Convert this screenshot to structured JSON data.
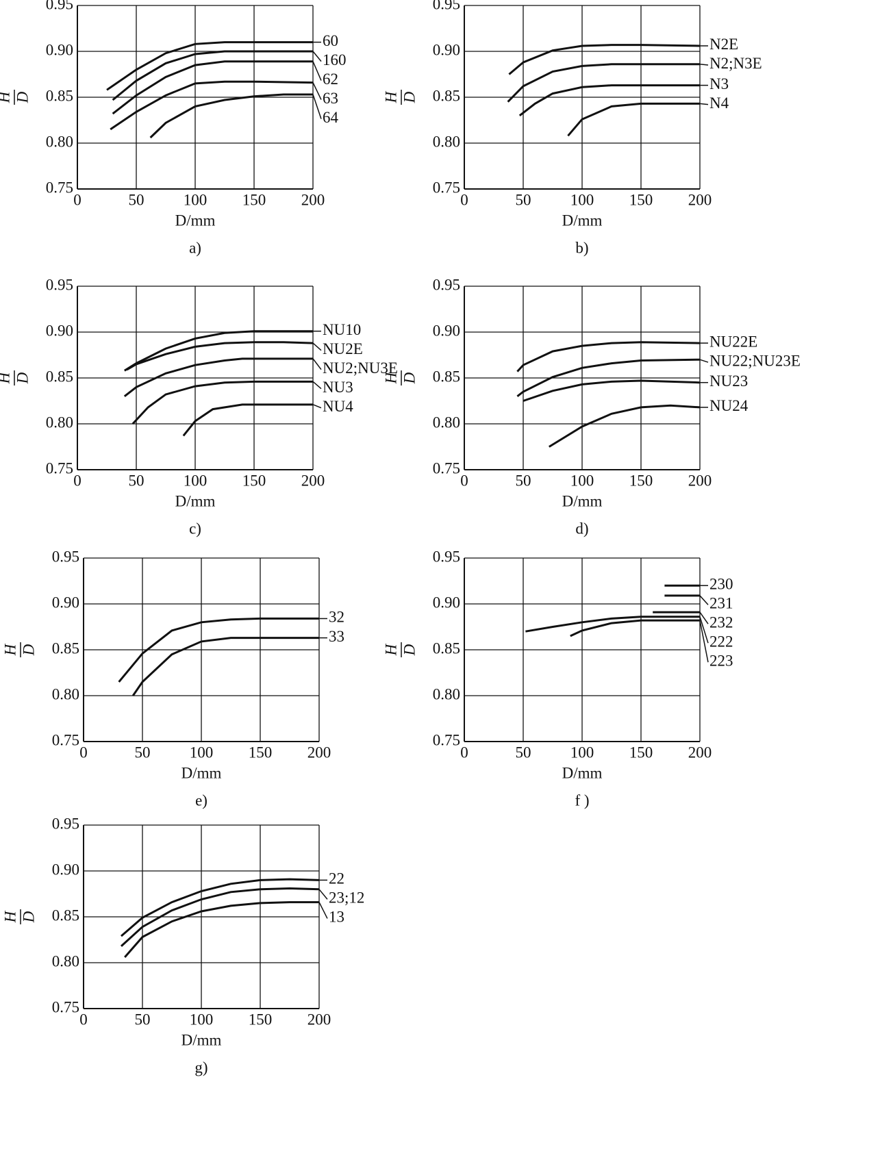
{
  "chart_data": [
    {
      "type": "line",
      "caption": "a)",
      "xlabel": "D/mm",
      "ylabel": {
        "numerator": "H",
        "denominator": "D"
      },
      "xlim": [
        0,
        200
      ],
      "ylim": [
        0.75,
        0.95
      ],
      "xticks": [
        0,
        50,
        100,
        150,
        200
      ],
      "yticks": [
        0.75,
        {
          "value": 0.8,
          "label": "0.80"
        },
        0.85,
        {
          "value": 0.9,
          "label": "0.90"
        },
        0.95
      ],
      "grid": true,
      "color": "#111111",
      "series": [
        {
          "name": "60",
          "x": [
            25,
            50,
            75,
            100,
            125,
            150,
            200
          ],
          "values": [
            0.858,
            0.88,
            0.898,
            0.908,
            0.91,
            0.91,
            0.91
          ]
        },
        {
          "name": "160",
          "x": [
            30,
            50,
            75,
            100,
            125,
            150,
            200
          ],
          "values": [
            0.847,
            0.868,
            0.887,
            0.897,
            0.9,
            0.9,
            0.9
          ]
        },
        {
          "name": "62",
          "x": [
            30,
            50,
            75,
            100,
            125,
            150,
            200
          ],
          "values": [
            0.832,
            0.852,
            0.872,
            0.885,
            0.889,
            0.889,
            0.889
          ]
        },
        {
          "name": "63",
          "x": [
            28,
            50,
            75,
            100,
            125,
            150,
            200
          ],
          "values": [
            0.815,
            0.834,
            0.852,
            0.865,
            0.867,
            0.867,
            0.866
          ]
        },
        {
          "name": "64",
          "x": [
            62,
            75,
            100,
            125,
            150,
            175,
            200
          ],
          "values": [
            0.806,
            0.822,
            0.84,
            0.847,
            0.851,
            0.853,
            0.853
          ]
        }
      ]
    },
    {
      "type": "line",
      "caption": "b)",
      "xlabel": "D/mm",
      "ylabel": {
        "numerator": "H",
        "denominator": "D"
      },
      "xlim": [
        0,
        200
      ],
      "ylim": [
        0.75,
        0.95
      ],
      "xticks": [
        0,
        50,
        100,
        150,
        200
      ],
      "yticks": [
        0.75,
        {
          "value": 0.8,
          "label": "0.80"
        },
        0.85,
        {
          "value": 0.9,
          "label": "0.90"
        },
        0.95
      ],
      "grid": true,
      "color": "#111111",
      "series": [
        {
          "name": "N2E",
          "x": [
            38,
            50,
            75,
            100,
            125,
            150,
            200
          ],
          "values": [
            0.875,
            0.888,
            0.901,
            0.906,
            0.907,
            0.907,
            0.906
          ]
        },
        {
          "name": "N2;N3E",
          "x": [
            37,
            50,
            75,
            100,
            125,
            150,
            200
          ],
          "values": [
            0.845,
            0.862,
            0.878,
            0.884,
            0.886,
            0.886,
            0.886
          ]
        },
        {
          "name": "N3",
          "x": [
            47,
            60,
            75,
            100,
            125,
            150,
            200
          ],
          "values": [
            0.83,
            0.843,
            0.854,
            0.861,
            0.863,
            0.863,
            0.863
          ]
        },
        {
          "name": "N4",
          "x": [
            88,
            100,
            125,
            150,
            200
          ],
          "values": [
            0.808,
            0.826,
            0.84,
            0.843,
            0.843
          ]
        }
      ]
    },
    {
      "type": "line",
      "caption": "c)",
      "xlabel": "D/mm",
      "ylabel": {
        "numerator": "H",
        "denominator": "D"
      },
      "xlim": [
        0,
        200
      ],
      "ylim": [
        0.75,
        0.95
      ],
      "xticks": [
        0,
        50,
        100,
        150,
        200
      ],
      "yticks": [
        0.75,
        {
          "value": 0.8,
          "label": "0.80"
        },
        0.85,
        {
          "value": 0.9,
          "label": "0.90"
        },
        0.95
      ],
      "grid": true,
      "color": "#111111",
      "series": [
        {
          "name": "NU10",
          "x": [
            40,
            50,
            75,
            100,
            125,
            150,
            200
          ],
          "values": [
            0.858,
            0.866,
            0.882,
            0.893,
            0.899,
            0.901,
            0.901
          ]
        },
        {
          "name": "NU2E",
          "x": [
            42,
            50,
            75,
            100,
            125,
            150,
            175,
            200
          ],
          "values": [
            0.859,
            0.865,
            0.876,
            0.884,
            0.888,
            0.889,
            0.889,
            0.888
          ]
        },
        {
          "name": "NU2;NU3E",
          "x": [
            40,
            50,
            75,
            100,
            125,
            140,
            200
          ],
          "values": [
            0.83,
            0.84,
            0.855,
            0.864,
            0.869,
            0.871,
            0.871
          ]
        },
        {
          "name": "NU3",
          "x": [
            47,
            60,
            75,
            100,
            125,
            150,
            200
          ],
          "values": [
            0.8,
            0.818,
            0.832,
            0.841,
            0.845,
            0.846,
            0.846
          ]
        },
        {
          "name": "NU4",
          "x": [
            90,
            100,
            115,
            140,
            200
          ],
          "values": [
            0.787,
            0.803,
            0.816,
            0.821,
            0.821
          ]
        }
      ]
    },
    {
      "type": "line",
      "caption": "d)",
      "xlabel": "D/mm",
      "ylabel": {
        "numerator": "H",
        "denominator": "D"
      },
      "xlim": [
        0,
        200
      ],
      "ylim": [
        0.75,
        0.95
      ],
      "xticks": [
        0,
        50,
        100,
        150,
        200
      ],
      "yticks": [
        0.75,
        {
          "value": 0.8,
          "label": "0.80"
        },
        0.85,
        {
          "value": 0.9,
          "label": "0.90"
        },
        0.95
      ],
      "grid": true,
      "color": "#111111",
      "series": [
        {
          "name": "NU22E",
          "x": [
            45,
            50,
            75,
            100,
            125,
            150,
            200
          ],
          "values": [
            0.857,
            0.864,
            0.879,
            0.885,
            0.888,
            0.889,
            0.888
          ]
        },
        {
          "name": "NU22;NU23E",
          "x": [
            45,
            50,
            75,
            100,
            125,
            150,
            200
          ],
          "values": [
            0.83,
            0.835,
            0.851,
            0.861,
            0.866,
            0.869,
            0.87
          ]
        },
        {
          "name": "NU23",
          "x": [
            50,
            75,
            100,
            125,
            150,
            200
          ],
          "values": [
            0.825,
            0.836,
            0.843,
            0.846,
            0.847,
            0.845
          ]
        },
        {
          "name": "NU24",
          "x": [
            72,
            100,
            125,
            150,
            175,
            200
          ],
          "values": [
            0.775,
            0.797,
            0.811,
            0.818,
            0.82,
            0.818
          ]
        }
      ]
    },
    {
      "type": "line",
      "caption": "e)",
      "xlabel": "D/mm",
      "ylabel": {
        "numerator": "H",
        "denominator": "D"
      },
      "xlim": [
        0,
        200
      ],
      "ylim": [
        0.75,
        0.95
      ],
      "xticks": [
        0,
        50,
        100,
        150,
        200
      ],
      "yticks": [
        0.75,
        {
          "value": 0.8,
          "label": "0.80"
        },
        0.85,
        {
          "value": 0.9,
          "label": "0.90"
        },
        0.95
      ],
      "grid": true,
      "color": "#111111",
      "series": [
        {
          "name": "32",
          "x": [
            30,
            50,
            75,
            100,
            125,
            150,
            200
          ],
          "values": [
            0.815,
            0.846,
            0.871,
            0.88,
            0.883,
            0.884,
            0.884
          ]
        },
        {
          "name": "33",
          "x": [
            42,
            50,
            75,
            100,
            125,
            150,
            200
          ],
          "values": [
            0.8,
            0.815,
            0.845,
            0.859,
            0.863,
            0.863,
            0.863
          ]
        }
      ]
    },
    {
      "type": "line",
      "caption": "f )",
      "xlabel": "D/mm",
      "ylabel": {
        "numerator": "H",
        "denominator": "D"
      },
      "xlim": [
        0,
        200
      ],
      "ylim": [
        0.75,
        0.95
      ],
      "xticks": [
        0,
        50,
        100,
        150,
        200
      ],
      "yticks": [
        0.75,
        {
          "value": 0.8,
          "label": "0.80"
        },
        0.85,
        {
          "value": 0.9,
          "label": "0.90"
        },
        0.95
      ],
      "grid": true,
      "color": "#111111",
      "series": [
        {
          "name": "230",
          "x": [
            170,
            200
          ],
          "values": [
            0.92,
            0.92
          ]
        },
        {
          "name": "231",
          "x": [
            170,
            200
          ],
          "values": [
            0.909,
            0.909
          ]
        },
        {
          "name": "232",
          "x": [
            160,
            200
          ],
          "values": [
            0.891,
            0.891
          ]
        },
        {
          "name": "222",
          "x": [
            52,
            75,
            100,
            125,
            150,
            200
          ],
          "values": [
            0.87,
            0.875,
            0.88,
            0.884,
            0.886,
            0.886
          ]
        },
        {
          "name": "223",
          "x": [
            90,
            100,
            125,
            150,
            200
          ],
          "values": [
            0.865,
            0.871,
            0.879,
            0.882,
            0.882
          ]
        }
      ]
    },
    {
      "type": "line",
      "caption": "g)",
      "xlabel": "D/mm",
      "ylabel": {
        "numerator": "H",
        "denominator": "D"
      },
      "xlim": [
        0,
        200
      ],
      "ylim": [
        0.75,
        0.95
      ],
      "xticks": [
        0,
        50,
        100,
        150,
        200
      ],
      "yticks": [
        0.75,
        {
          "value": 0.8,
          "label": "0.80"
        },
        0.85,
        {
          "value": 0.9,
          "label": "0.90"
        },
        0.95
      ],
      "grid": true,
      "color": "#111111",
      "series": [
        {
          "name": "22",
          "x": [
            32,
            50,
            75,
            100,
            125,
            150,
            175,
            200
          ],
          "values": [
            0.829,
            0.849,
            0.866,
            0.878,
            0.886,
            0.89,
            0.891,
            0.89
          ]
        },
        {
          "name": "23;12",
          "x": [
            32,
            50,
            75,
            100,
            125,
            150,
            175,
            200
          ],
          "values": [
            0.818,
            0.839,
            0.857,
            0.869,
            0.877,
            0.88,
            0.881,
            0.88
          ]
        },
        {
          "name": "13",
          "x": [
            35,
            50,
            75,
            100,
            125,
            150,
            175,
            200
          ],
          "values": [
            0.806,
            0.828,
            0.845,
            0.856,
            0.862,
            0.865,
            0.866,
            0.866
          ]
        }
      ]
    }
  ]
}
